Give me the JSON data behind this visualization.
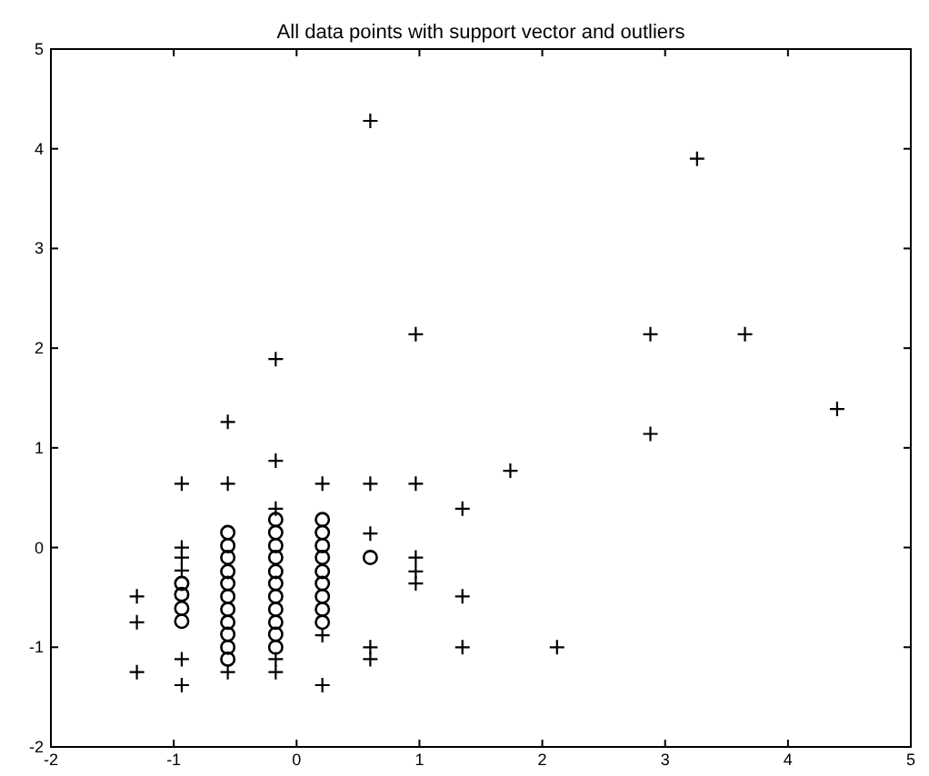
{
  "chart_data": {
    "type": "scatter",
    "title": "All data points with support vector and outliers",
    "xlim": [
      -2,
      5
    ],
    "xticks": [
      -2,
      -1,
      0,
      1,
      2,
      3,
      4,
      5
    ],
    "ylim": [
      -2,
      5
    ],
    "yticks": [
      -2,
      -1,
      0,
      1,
      2,
      3,
      4,
      5
    ],
    "grid": false,
    "series": [
      {
        "color": "#000000",
        "marker": "cross",
        "x": [
          -1.3,
          -1.3,
          -1.3,
          -0.935,
          -0.935,
          -0.935,
          -0.935,
          -0.935,
          -0.935,
          -0.56,
          -0.56,
          -0.56,
          -0.17,
          -0.17,
          -0.17,
          -0.17,
          -0.17,
          0.21,
          0.21,
          0.21,
          0.6,
          0.6,
          0.6,
          0.6,
          0.6,
          0.97,
          0.97,
          0.97,
          0.97,
          0.97,
          1.35,
          1.35,
          1.35,
          1.74,
          2.12,
          2.88,
          2.88,
          3.26,
          3.65,
          4.4
        ],
        "values": [
          -0.49,
          -0.75,
          -1.25,
          0.64,
          0.0,
          -0.1,
          -0.23,
          -1.12,
          -1.38,
          1.26,
          0.64,
          -1.25,
          1.89,
          0.87,
          0.39,
          -1.12,
          -1.25,
          0.64,
          -0.88,
          -1.38,
          4.28,
          0.64,
          0.14,
          -1.0,
          -1.12,
          2.14,
          0.64,
          -0.1,
          -0.24,
          -0.36,
          0.39,
          -0.49,
          -1.0,
          0.77,
          -1.0,
          2.14,
          1.14,
          3.9,
          2.14,
          1.39
        ]
      },
      {
        "color": "#000000",
        "marker": "circle",
        "x": [
          -0.935,
          -0.935,
          -0.935,
          -0.935,
          -0.56,
          -0.56,
          -0.56,
          -0.56,
          -0.56,
          -0.56,
          -0.56,
          -0.56,
          -0.56,
          -0.56,
          -0.56,
          -0.17,
          -0.17,
          -0.17,
          -0.17,
          -0.17,
          -0.17,
          -0.17,
          -0.17,
          -0.17,
          -0.17,
          -0.17,
          0.21,
          0.21,
          0.21,
          0.21,
          0.21,
          0.21,
          0.21,
          0.21,
          0.21,
          0.6
        ],
        "values": [
          -0.36,
          -0.47,
          -0.61,
          -0.74,
          0.15,
          0.02,
          -0.1,
          -0.24,
          -0.36,
          -0.49,
          -0.62,
          -0.75,
          -0.87,
          -1.0,
          -1.12,
          0.28,
          0.15,
          0.02,
          -0.1,
          -0.24,
          -0.36,
          -0.49,
          -0.62,
          -0.75,
          -0.87,
          -1.0,
          0.28,
          0.15,
          0.02,
          -0.1,
          -0.24,
          -0.36,
          -0.49,
          -0.62,
          -0.75,
          -0.1
        ]
      }
    ]
  }
}
